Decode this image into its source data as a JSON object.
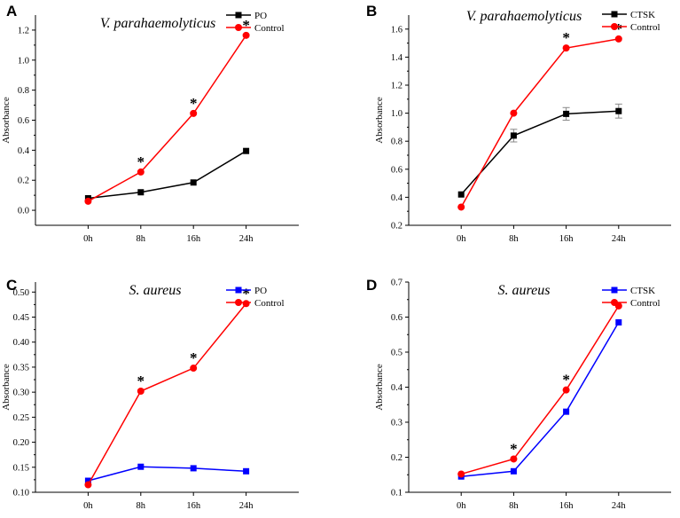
{
  "chart_data": [
    {
      "panel": "A",
      "type": "line",
      "title": "V. parahaemolyticus",
      "xlabel": "",
      "ylabel": "Absorbance",
      "categories": [
        "0h",
        "8h",
        "16h",
        "24h"
      ],
      "ylim": [
        -0.1,
        1.3
      ],
      "yticks": [
        "0.0",
        "0.2",
        "0.4",
        "0.6",
        "0.8",
        "1.0",
        "1.2"
      ],
      "legend_position": "top-right",
      "series": [
        {
          "name": "PO",
          "marker": "square",
          "color": "#000000",
          "values": [
            0.08,
            0.12,
            0.185,
            0.395
          ],
          "errors": [
            0,
            0,
            0,
            0
          ]
        },
        {
          "name": "Control",
          "marker": "circle",
          "color": "#ff0000",
          "values": [
            0.06,
            0.255,
            0.645,
            1.165
          ],
          "errors": [
            0,
            0,
            0,
            0
          ]
        }
      ],
      "significance": [
        "",
        "*",
        "*",
        "*"
      ]
    },
    {
      "panel": "B",
      "type": "line",
      "title": "V. parahaemolyticus",
      "xlabel": "",
      "ylabel": "Absorbance",
      "categories": [
        "0h",
        "8h",
        "16h",
        "24h"
      ],
      "ylim": [
        0.2,
        1.7
      ],
      "yticks": [
        "0.2",
        "0.4",
        "0.6",
        "0.8",
        "1.0",
        "1.2",
        "1.4",
        "1.6"
      ],
      "legend_position": "top-right",
      "series": [
        {
          "name": "CTSK",
          "marker": "square",
          "color": "#000000",
          "values": [
            0.42,
            0.84,
            0.995,
            1.015
          ],
          "errors": [
            0,
            0.045,
            0.045,
            0.05
          ]
        },
        {
          "name": "Control",
          "marker": "circle",
          "color": "#ff0000",
          "values": [
            0.33,
            1.0,
            1.465,
            1.53
          ],
          "errors": [
            0,
            0,
            0,
            0
          ]
        }
      ],
      "significance": [
        "",
        "",
        "*",
        "*"
      ]
    },
    {
      "panel": "C",
      "type": "line",
      "title": "S. aureus",
      "xlabel": "",
      "ylabel": "Absorbance",
      "categories": [
        "0h",
        "8h",
        "16h",
        "24h"
      ],
      "ylim": [
        0.1,
        0.52
      ],
      "yticks": [
        "0.10",
        "0.15",
        "0.20",
        "0.25",
        "0.30",
        "0.35",
        "0.40",
        "0.45",
        "0.50"
      ],
      "legend_position": "top-right",
      "series": [
        {
          "name": "PO",
          "marker": "square",
          "color": "#0000ff",
          "values": [
            0.123,
            0.151,
            0.148,
            0.142
          ],
          "errors": [
            0,
            0,
            0,
            0
          ]
        },
        {
          "name": "Control",
          "marker": "circle",
          "color": "#ff0000",
          "values": [
            0.115,
            0.302,
            0.348,
            0.477
          ],
          "errors": [
            0,
            0,
            0,
            0
          ]
        }
      ],
      "significance": [
        "",
        "*",
        "*",
        "*"
      ]
    },
    {
      "panel": "D",
      "type": "line",
      "title": "S. aureus",
      "xlabel": "",
      "ylabel": "Absorbance",
      "categories": [
        "0h",
        "8h",
        "16h",
        "24h"
      ],
      "ylim": [
        0.1,
        0.7
      ],
      "yticks": [
        "0.1",
        "0.2",
        "0.3",
        "0.4",
        "0.5",
        "0.6",
        "0.7"
      ],
      "legend_position": "top-right",
      "series": [
        {
          "name": "CTSK",
          "marker": "square",
          "color": "#0000ff",
          "values": [
            0.145,
            0.16,
            0.33,
            0.585
          ],
          "errors": [
            0,
            0,
            0,
            0
          ]
        },
        {
          "name": "Control",
          "marker": "circle",
          "color": "#ff0000",
          "values": [
            0.152,
            0.195,
            0.392,
            0.632
          ],
          "errors": [
            0,
            0,
            0,
            0
          ]
        }
      ],
      "significance": [
        "",
        "*",
        "*",
        ""
      ]
    }
  ]
}
